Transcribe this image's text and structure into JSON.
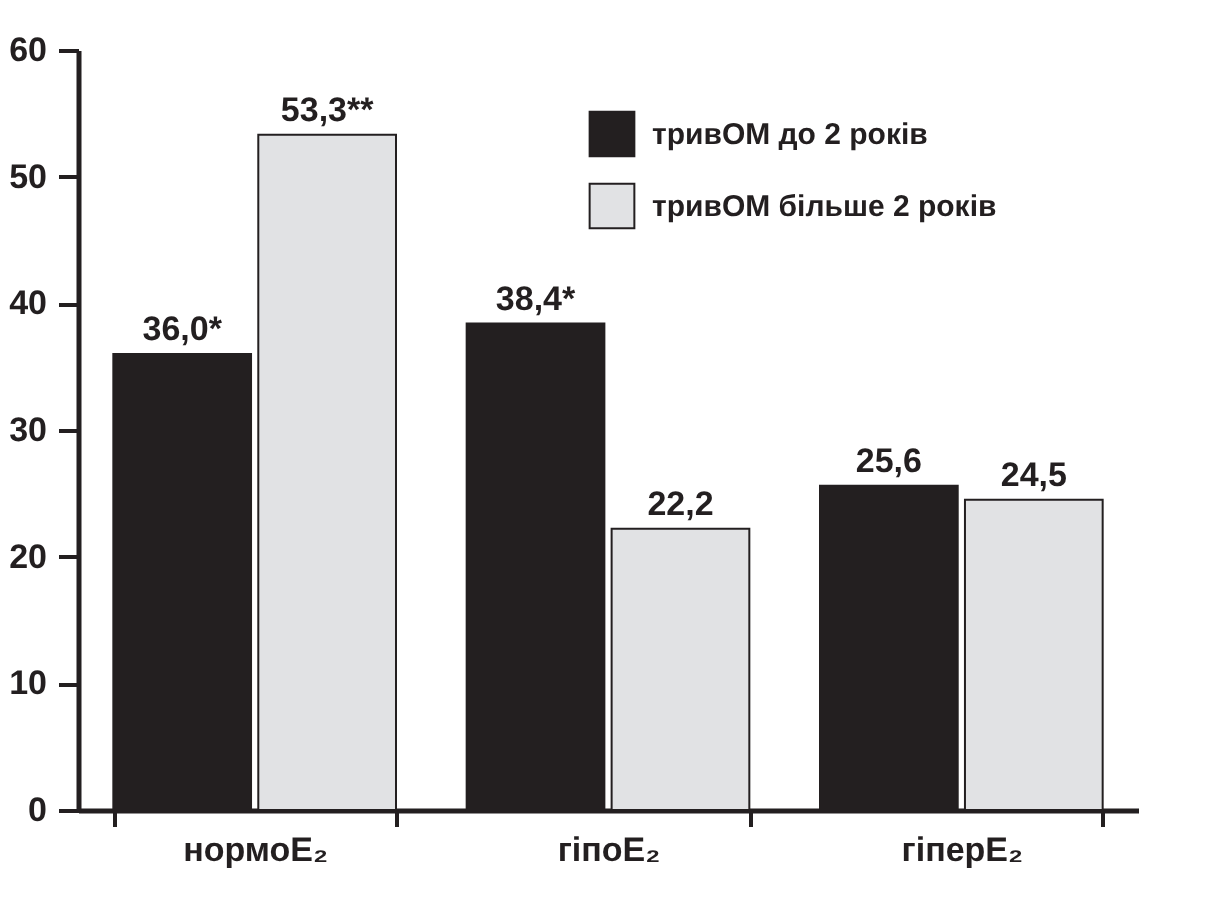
{
  "chart_data": {
    "type": "bar",
    "categories": [
      "нормоE₂",
      "гіпоE₂",
      "гіперE₂"
    ],
    "series": [
      {
        "name": "тривОМ до 2 років",
        "color": "#231f20",
        "values": [
          36.0,
          38.4,
          25.6
        ],
        "value_labels": [
          "36,0*",
          "38,4*",
          "25,6"
        ]
      },
      {
        "name": "тривОМ більше 2 років",
        "color": "#e1e2e4",
        "values": [
          53.3,
          22.2,
          24.5
        ],
        "value_labels": [
          "53,3**",
          "22,2",
          "24,5"
        ]
      }
    ],
    "ylim": [
      0,
      60
    ],
    "yticks": [
      0,
      10,
      20,
      30,
      40,
      50,
      60
    ],
    "grid": false,
    "legend": "top right"
  }
}
